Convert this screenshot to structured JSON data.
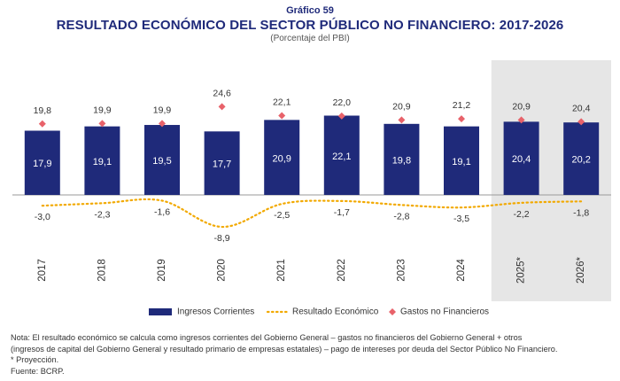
{
  "header": {
    "figure_label": "Gráfico 59",
    "title": "RESULTADO ECONÓMICO DEL SECTOR PÚBLICO NO FINANCIERO: 2017-2026",
    "subtitle": "(Porcentaje del PBI)"
  },
  "chart_data": {
    "type": "bar",
    "categories": [
      "2017",
      "2018",
      "2019",
      "2020",
      "2021",
      "2022",
      "2023",
      "2024",
      "2025*",
      "2026*"
    ],
    "projection_categories": [
      "2025*",
      "2026*"
    ],
    "series": [
      {
        "name": "Ingresos Corrientes",
        "kind": "bar",
        "color": "#1f2a7a",
        "values": [
          17.9,
          19.1,
          19.5,
          17.7,
          20.9,
          22.1,
          19.8,
          19.1,
          20.4,
          20.2
        ],
        "labels": [
          "17,9",
          "19,1",
          "19,5",
          "17,7",
          "20,9",
          "22,1",
          "19,8",
          "19,1",
          "20,4",
          "20,2"
        ]
      },
      {
        "name": "Resultado Económico",
        "kind": "dotted-line",
        "color": "#f2a900",
        "values": [
          -3.0,
          -2.3,
          -1.6,
          -8.9,
          -2.5,
          -1.7,
          -2.8,
          -3.5,
          -2.2,
          -1.8
        ],
        "labels": [
          "-3,0",
          "-2,3",
          "-1,6",
          "-8,9",
          "-2,5",
          "-1,7",
          "-2,8",
          "-3,5",
          "-2,2",
          "-1,8"
        ]
      },
      {
        "name": "Gastos no Financieros",
        "kind": "diamond",
        "color": "#e8626a",
        "values": [
          19.8,
          19.9,
          19.9,
          24.6,
          22.1,
          22.0,
          20.9,
          21.2,
          20.9,
          20.4
        ],
        "labels": [
          "19,8",
          "19,9",
          "19,9",
          "24,6",
          "22,1",
          "22,0",
          "20,9",
          "21,2",
          "20,9",
          "20,4"
        ]
      }
    ],
    "legend_position": "bottom",
    "grid": false
  },
  "notes": {
    "line1": "Nota: El resultado económico se calcula como ingresos corrientes del Gobierno General – gastos no financieros del Gobierno General + otros",
    "line2": "(ingresos de capital del Gobierno General y resultado primario de empresas estatales) – pago de intereses por deuda del Sector Público No Financiero.",
    "line3": "* Proyección.",
    "line4": "Fuente: BCRP."
  }
}
